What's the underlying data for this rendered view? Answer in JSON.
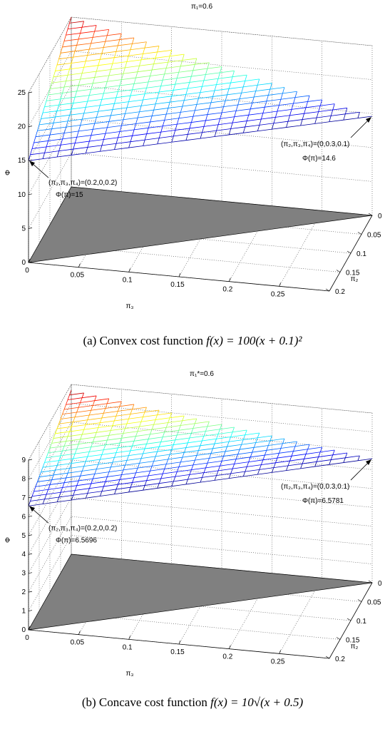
{
  "chart_data": [
    {
      "type": "surface",
      "title": "π₁=0.6",
      "zlabel": "Φ",
      "xlabel": "π₃",
      "ylabel": "π₂",
      "x_ticks": [
        "0",
        "0.05",
        "0.1",
        "0.15",
        "0.2",
        "0.25"
      ],
      "y_ticks": [
        "0",
        "0.05",
        "0.1",
        "0.15",
        "0.2"
      ],
      "z_ticks": [
        "0",
        "5",
        "10",
        "15",
        "20",
        "25"
      ],
      "zlim": [
        0,
        25
      ],
      "grid": true,
      "colormap": "jet",
      "surface_corners": [
        {
          "pi2": 0.2,
          "pi3": 0,
          "pi4": 0.2,
          "phi": 15
        },
        {
          "pi2": 0,
          "pi3": 0.3,
          "pi4": 0.1,
          "phi": 14.6
        },
        {
          "pi2": 0,
          "pi3": 0,
          "pi4": 0.4,
          "phi": 25
        }
      ],
      "annotations": [
        {
          "line1": "(π₂,π₃,π₄)=(0.2,0,0.2)",
          "line2": "Φ(π)=15"
        },
        {
          "line1": "(π₂,π₃,π₄)=(0,0.3,0.1)",
          "line2": "Φ(π)=14.6"
        }
      ],
      "caption": {
        "prefix": "(a) Convex cost function ",
        "math": "f(x) = 100(x + 0.1)²"
      }
    },
    {
      "type": "surface",
      "title": "π₁*=0.6",
      "zlabel": "Φ",
      "xlabel": "π₃",
      "ylabel": "π₂",
      "x_ticks": [
        "0",
        "0.05",
        "0.1",
        "0.15",
        "0.2",
        "0.25"
      ],
      "y_ticks": [
        "0",
        "0.05",
        "0.1",
        "0.15",
        "0.2"
      ],
      "z_ticks": [
        "0",
        "1",
        "2",
        "3",
        "4",
        "5",
        "6",
        "7",
        "8",
        "9"
      ],
      "zlim": [
        0,
        9
      ],
      "grid": true,
      "colormap": "jet",
      "surface_corners": [
        {
          "pi2": 0.2,
          "pi3": 0,
          "pi4": 0.2,
          "phi": 6.5696
        },
        {
          "pi2": 0,
          "pi3": 0.3,
          "pi4": 0.1,
          "phi": 6.5781
        },
        {
          "pi2": 0,
          "pi3": 0,
          "pi4": 0.4,
          "phi": 8.7
        }
      ],
      "annotations": [
        {
          "line1": "(π₂,π₃,π₄)=(0.2,0,0.2)",
          "line2": "Φ(π)=6.5696"
        },
        {
          "line1": "(π₂,π₃,π₄)=(0,0.3,0.1)",
          "line2": "Φ(π)=6.5781"
        }
      ],
      "caption": {
        "prefix": "(b) Concave cost function ",
        "math": "f(x) = 10√(x + 0.5)"
      }
    }
  ]
}
